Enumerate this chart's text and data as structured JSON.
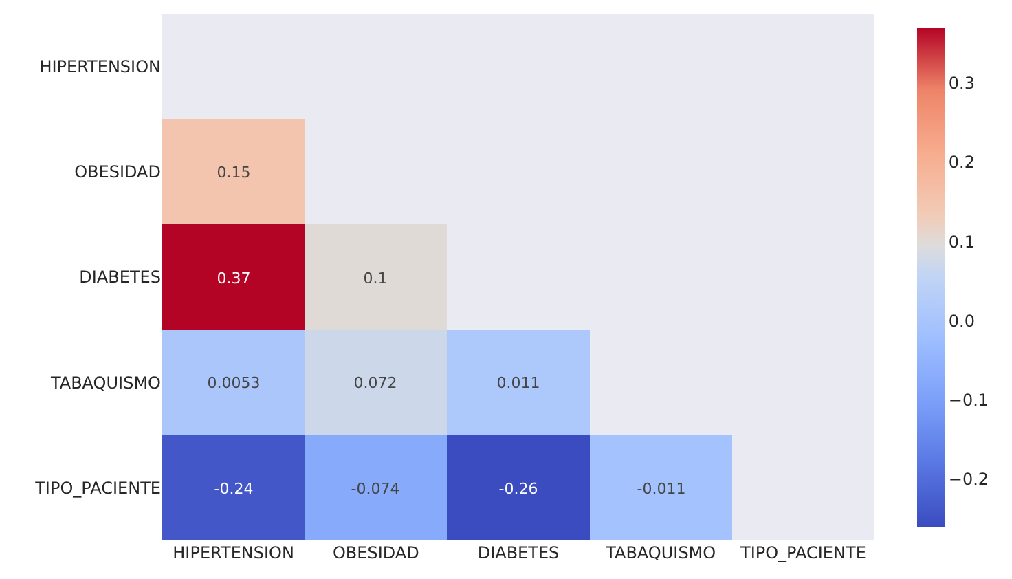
{
  "chart_data": {
    "type": "heatmap",
    "categories": [
      "HIPERTENSION",
      "OBESIDAD",
      "DIABETES",
      "TABAQUISMO",
      "TIPO_PACIENTE"
    ],
    "y_categories": [
      "HIPERTENSION",
      "OBESIDAD",
      "DIABETES",
      "TABAQUISMO",
      "TIPO_PACIENTE"
    ],
    "cells": [
      [
        null,
        null,
        null,
        null,
        null
      ],
      [
        0.15,
        null,
        null,
        null,
        null
      ],
      [
        0.37,
        0.1,
        null,
        null,
        null
      ],
      [
        0.0053,
        0.072,
        0.011,
        null,
        null
      ],
      [
        -0.24,
        -0.074,
        -0.26,
        -0.011,
        null
      ]
    ],
    "data_labels": true,
    "clim": [
      -0.26,
      0.37
    ],
    "cticks": [
      {
        "value": -0.2,
        "label": "−0.2"
      },
      {
        "value": -0.1,
        "label": "−0.1"
      },
      {
        "value": 0,
        "label": "0.0"
      },
      {
        "value": 0.1,
        "label": "0.1"
      },
      {
        "value": 0.2,
        "label": "0.2"
      },
      {
        "value": 0.3,
        "label": "0.3"
      }
    ]
  }
}
